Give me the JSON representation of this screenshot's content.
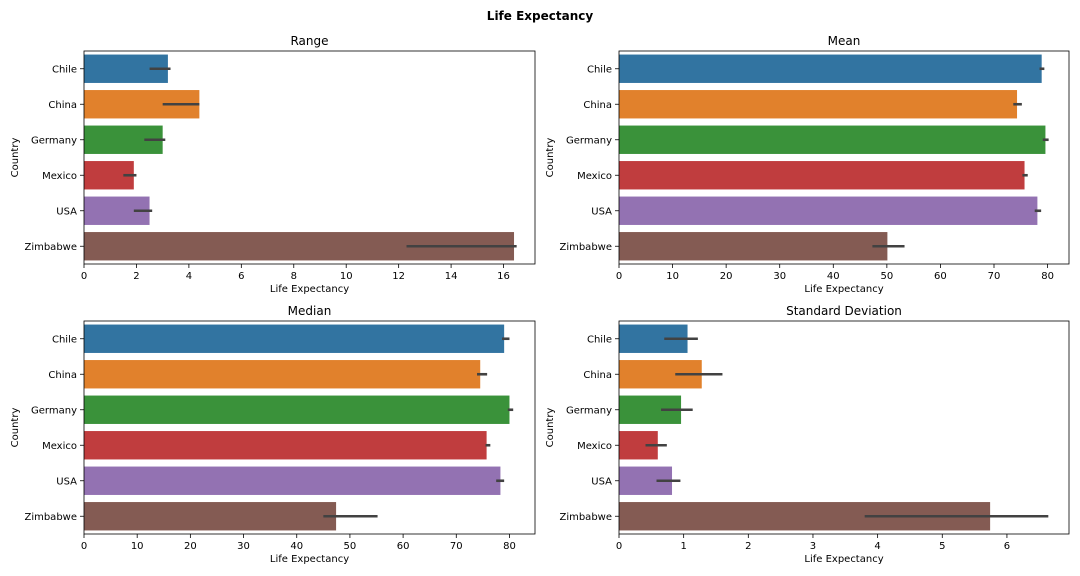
{
  "figure": {
    "title": "Life Expectancy"
  },
  "chart_data": [
    {
      "type": "bar",
      "orientation": "horizontal",
      "title": "Range",
      "xlabel": "Life Expectancy",
      "ylabel": "Country",
      "categories": [
        "Chile",
        "China",
        "Germany",
        "Mexico",
        "USA",
        "Zimbabwe"
      ],
      "values": [
        3.2,
        4.4,
        3.0,
        1.9,
        2.5,
        16.4
      ],
      "error_bars": [
        [
          2.5,
          3.3
        ],
        [
          3.0,
          4.4
        ],
        [
          2.3,
          3.1
        ],
        [
          1.5,
          2.0
        ],
        [
          1.9,
          2.6
        ],
        [
          12.3,
          16.5
        ]
      ],
      "xlim": [
        0,
        17.2
      ],
      "xticks": [
        0,
        2,
        4,
        6,
        8,
        10,
        12,
        14,
        16
      ],
      "colors": [
        "#3274a1",
        "#e1812c",
        "#3a923a",
        "#c03d3e",
        "#9372b2",
        "#845b53"
      ]
    },
    {
      "type": "bar",
      "orientation": "horizontal",
      "title": "Mean",
      "xlabel": "Life Expectancy",
      "ylabel": "Country",
      "categories": [
        "Chile",
        "China",
        "Germany",
        "Mexico",
        "USA",
        "Zimbabwe"
      ],
      "values": [
        78.9,
        74.3,
        79.6,
        75.7,
        78.1,
        50.1
      ],
      "error_bars": [
        [
          78.5,
          79.4
        ],
        [
          73.6,
          75.2
        ],
        [
          79.1,
          80.2
        ],
        [
          75.3,
          76.3
        ],
        [
          77.6,
          78.8
        ],
        [
          47.3,
          53.3
        ]
      ],
      "xlim": [
        0,
        84
      ],
      "xticks": [
        0,
        10,
        20,
        30,
        40,
        50,
        60,
        70,
        80
      ],
      "colors": [
        "#3274a1",
        "#e1812c",
        "#3a923a",
        "#c03d3e",
        "#9372b2",
        "#845b53"
      ]
    },
    {
      "type": "bar",
      "orientation": "horizontal",
      "title": "Median",
      "xlabel": "Life Expectancy",
      "ylabel": "Country",
      "categories": [
        "Chile",
        "China",
        "Germany",
        "Mexico",
        "USA",
        "Zimbabwe"
      ],
      "values": [
        79.0,
        74.5,
        80.0,
        75.7,
        78.3,
        47.4
      ],
      "error_bars": [
        [
          78.6,
          80.0
        ],
        [
          73.9,
          75.8
        ],
        [
          79.7,
          80.7
        ],
        [
          75.5,
          76.4
        ],
        [
          77.5,
          79.0
        ],
        [
          45.0,
          55.2
        ]
      ],
      "xlim": [
        0,
        84.8
      ],
      "xticks": [
        0,
        10,
        20,
        30,
        40,
        50,
        60,
        70,
        80
      ],
      "colors": [
        "#3274a1",
        "#e1812c",
        "#3a923a",
        "#c03d3e",
        "#9372b2",
        "#845b53"
      ]
    },
    {
      "type": "bar",
      "orientation": "horizontal",
      "title": "Standard Deviation",
      "xlabel": "Life Expectancy",
      "ylabel": "Country",
      "categories": [
        "Chile",
        "China",
        "Germany",
        "Mexico",
        "USA",
        "Zimbabwe"
      ],
      "values": [
        1.06,
        1.28,
        0.96,
        0.6,
        0.82,
        5.74
      ],
      "error_bars": [
        [
          0.7,
          1.22
        ],
        [
          0.87,
          1.6
        ],
        [
          0.65,
          1.14
        ],
        [
          0.41,
          0.74
        ],
        [
          0.58,
          0.95
        ],
        [
          3.8,
          6.64
        ]
      ],
      "xlim": [
        0,
        6.96
      ],
      "xticks": [
        0,
        1,
        2,
        3,
        4,
        5,
        6
      ],
      "colors": [
        "#3274a1",
        "#e1812c",
        "#3a923a",
        "#c03d3e",
        "#9372b2",
        "#845b53"
      ]
    }
  ]
}
